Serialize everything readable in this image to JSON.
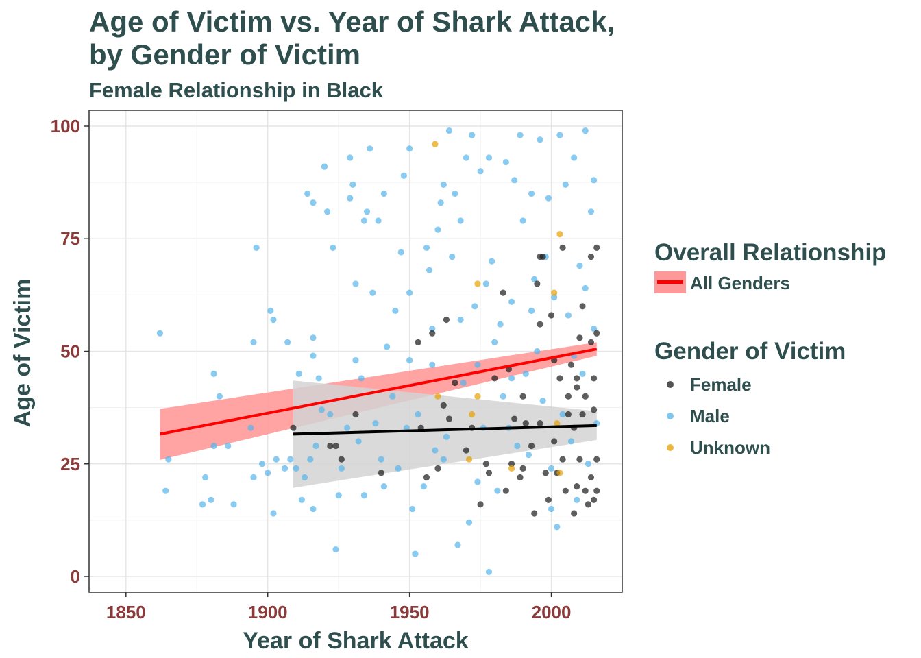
{
  "title_line1": "Age of Victim vs. Year of Shark Attack,",
  "title_line2": "by Gender of Victim",
  "subtitle": "Female Relationship in Black",
  "legend": {
    "overall_title": "Overall Relationship",
    "overall_item": "All Genders",
    "gender_title": "Gender of Victim",
    "genders": [
      {
        "label": "Female",
        "color": "#1a1a1a"
      },
      {
        "label": "Male",
        "color": "#56b4e9"
      },
      {
        "label": "Unknown",
        "color": "#e69f00"
      }
    ]
  },
  "colors": {
    "female": "#1a1a1a",
    "male": "#56b4e9",
    "unknown": "#e69f00",
    "overall_line": "#ff0000",
    "overall_band": "#ff9999",
    "female_band": "#d3d3d3",
    "title": "#2f4f4f",
    "tick": "#8b3a3a"
  },
  "chart_data": {
    "type": "scatter",
    "title": "Age of Victim vs. Year of Shark Attack,\nby Gender of Victim",
    "subtitle": "Female Relationship in Black",
    "xlabel": "Year of Shark Attack",
    "ylabel": "Age of Victim",
    "xlim": [
      1837,
      2025
    ],
    "ylim": [
      -3.5,
      103.5
    ],
    "x_ticks": [
      1850,
      1900,
      1950,
      2000
    ],
    "y_ticks": [
      0,
      25,
      50,
      75,
      100
    ],
    "grid": true,
    "legend_position": "right",
    "series": [
      {
        "name": "Female",
        "points": [
          [
            1909,
            33
          ],
          [
            1922,
            29
          ],
          [
            1924,
            29
          ],
          [
            1926,
            26
          ],
          [
            1931,
            36
          ],
          [
            1940,
            23
          ],
          [
            1953,
            52
          ],
          [
            1954,
            33
          ],
          [
            1956,
            22
          ],
          [
            1958,
            54
          ],
          [
            1960,
            24
          ],
          [
            1962,
            38
          ],
          [
            1963,
            57
          ],
          [
            1964,
            35
          ],
          [
            1966,
            43
          ],
          [
            1970,
            28
          ],
          [
            1972,
            33
          ],
          [
            1975,
            16
          ],
          [
            1977,
            25
          ],
          [
            1978,
            23
          ],
          [
            1980,
            44
          ],
          [
            1983,
            63
          ],
          [
            1984,
            19
          ],
          [
            1985,
            46
          ],
          [
            1986,
            25
          ],
          [
            1987,
            35
          ],
          [
            1989,
            22
          ],
          [
            1990,
            40
          ],
          [
            1990,
            24
          ],
          [
            1991,
            34
          ],
          [
            1993,
            29
          ],
          [
            1994,
            14
          ],
          [
            1995,
            65
          ],
          [
            1996,
            56
          ],
          [
            1996,
            34
          ],
          [
            1997,
            71
          ],
          [
            1998,
            23
          ],
          [
            1999,
            17
          ],
          [
            2000,
            58
          ],
          [
            2001,
            30
          ],
          [
            2002,
            23
          ],
          [
            2003,
            44
          ],
          [
            2004,
            26
          ],
          [
            2004,
            73
          ],
          [
            2005,
            19
          ],
          [
            2006,
            40
          ],
          [
            2006,
            36
          ],
          [
            2007,
            47
          ],
          [
            2008,
            14
          ],
          [
            2008,
            33
          ],
          [
            2009,
            44
          ],
          [
            2009,
            20
          ],
          [
            2010,
            26
          ],
          [
            2011,
            36
          ],
          [
            2011,
            60
          ],
          [
            2012,
            19
          ],
          [
            2012,
            40
          ],
          [
            2013,
            16
          ],
          [
            2014,
            52
          ],
          [
            2014,
            22
          ],
          [
            2014,
            71
          ],
          [
            2015,
            44
          ],
          [
            2015,
            37
          ],
          [
            2015,
            17
          ],
          [
            2016,
            73
          ],
          [
            2016,
            19
          ],
          [
            2016,
            26
          ],
          [
            2016,
            54
          ],
          [
            1996,
            71
          ],
          [
            2001,
            48
          ],
          [
            2009,
            42
          ],
          [
            2010,
            53
          ]
        ]
      },
      {
        "name": "Male",
        "points": [
          [
            1862,
            54
          ],
          [
            1864,
            19
          ],
          [
            1865,
            26
          ],
          [
            1877,
            16
          ],
          [
            1878,
            22
          ],
          [
            1880,
            17
          ],
          [
            1881,
            45
          ],
          [
            1881,
            29
          ],
          [
            1883,
            40
          ],
          [
            1886,
            29
          ],
          [
            1888,
            16
          ],
          [
            1894,
            33
          ],
          [
            1895,
            22
          ],
          [
            1895,
            52
          ],
          [
            1896,
            73
          ],
          [
            1898,
            25
          ],
          [
            1900,
            23
          ],
          [
            1901,
            59
          ],
          [
            1902,
            57
          ],
          [
            1902,
            14
          ],
          [
            1903,
            26
          ],
          [
            1906,
            24
          ],
          [
            1907,
            52
          ],
          [
            1908,
            26
          ],
          [
            1910,
            24
          ],
          [
            1911,
            45
          ],
          [
            1912,
            17
          ],
          [
            1913,
            22
          ],
          [
            1914,
            85
          ],
          [
            1915,
            26
          ],
          [
            1916,
            83
          ],
          [
            1916,
            53
          ],
          [
            1916,
            49
          ],
          [
            1916,
            15
          ],
          [
            1917,
            29
          ],
          [
            1918,
            44
          ],
          [
            1919,
            37
          ],
          [
            1920,
            91
          ],
          [
            1921,
            81
          ],
          [
            1922,
            36
          ],
          [
            1923,
            73
          ],
          [
            1924,
            6
          ],
          [
            1925,
            18
          ],
          [
            1926,
            24
          ],
          [
            1928,
            33
          ],
          [
            1929,
            84
          ],
          [
            1929,
            93
          ],
          [
            1930,
            87
          ],
          [
            1931,
            65
          ],
          [
            1931,
            48
          ],
          [
            1932,
            30
          ],
          [
            1933,
            44
          ],
          [
            1934,
            18
          ],
          [
            1934,
            79
          ],
          [
            1935,
            81
          ],
          [
            1936,
            95
          ],
          [
            1937,
            63
          ],
          [
            1938,
            34
          ],
          [
            1939,
            79
          ],
          [
            1940,
            26
          ],
          [
            1941,
            85
          ],
          [
            1941,
            20
          ],
          [
            1942,
            51
          ],
          [
            1944,
            40
          ],
          [
            1945,
            59
          ],
          [
            1946,
            24
          ],
          [
            1947,
            72
          ],
          [
            1948,
            89
          ],
          [
            1949,
            33
          ],
          [
            1950,
            95
          ],
          [
            1950,
            63
          ],
          [
            1950,
            48
          ],
          [
            1951,
            15
          ],
          [
            1952,
            5
          ],
          [
            1953,
            36
          ],
          [
            1955,
            20
          ],
          [
            1956,
            73
          ],
          [
            1957,
            68
          ],
          [
            1958,
            55
          ],
          [
            1959,
            28
          ],
          [
            1960,
            77
          ],
          [
            1961,
            83
          ],
          [
            1962,
            87
          ],
          [
            1963,
            31
          ],
          [
            1964,
            99
          ],
          [
            1965,
            71
          ],
          [
            1966,
            85
          ],
          [
            1967,
            7
          ],
          [
            1968,
            79
          ],
          [
            1969,
            43
          ],
          [
            1970,
            93
          ],
          [
            1971,
            12
          ],
          [
            1972,
            98
          ],
          [
            1973,
            60
          ],
          [
            1974,
            47
          ],
          [
            1975,
            90
          ],
          [
            1976,
            33
          ],
          [
            1977,
            65
          ],
          [
            1978,
            1
          ],
          [
            1978,
            93
          ],
          [
            1979,
            70
          ],
          [
            1980,
            52
          ],
          [
            1981,
            19
          ],
          [
            1982,
            56
          ],
          [
            1983,
            40
          ],
          [
            1984,
            92
          ],
          [
            1985,
            33
          ],
          [
            1986,
            61
          ],
          [
            1987,
            88
          ],
          [
            1988,
            29
          ],
          [
            1989,
            98
          ],
          [
            1990,
            79
          ],
          [
            1991,
            45
          ],
          [
            1992,
            27
          ],
          [
            1993,
            85
          ],
          [
            1994,
            66
          ],
          [
            1995,
            50
          ],
          [
            1996,
            97
          ],
          [
            1997,
            39
          ],
          [
            1998,
            71
          ],
          [
            1999,
            84
          ],
          [
            2000,
            24
          ],
          [
            2001,
            62
          ],
          [
            2002,
            11
          ],
          [
            2003,
            98
          ],
          [
            2004,
            36
          ],
          [
            2005,
            87
          ],
          [
            2006,
            58
          ],
          [
            2007,
            30
          ],
          [
            2008,
            93
          ],
          [
            2009,
            17
          ],
          [
            2010,
            69
          ],
          [
            2011,
            45
          ],
          [
            2012,
            99
          ],
          [
            2013,
            25
          ],
          [
            2014,
            81
          ],
          [
            2015,
            55
          ],
          [
            2016,
            34
          ],
          [
            1968,
            57
          ],
          [
            1962,
            26
          ],
          [
            1958,
            47
          ],
          [
            1974,
            21
          ],
          [
            1986,
            44
          ],
          [
            1993,
            59
          ],
          [
            2000,
            15
          ],
          [
            2008,
            49
          ],
          [
            2012,
            64
          ],
          [
            2015,
            88
          ]
        ]
      },
      {
        "name": "Unknown",
        "points": [
          [
            1959,
            96
          ],
          [
            1960,
            40
          ],
          [
            1971,
            26
          ],
          [
            1972,
            36
          ],
          [
            1974,
            65
          ],
          [
            1974,
            40
          ],
          [
            1986,
            24
          ],
          [
            2001,
            63
          ],
          [
            2002,
            34
          ],
          [
            2003,
            76
          ],
          [
            2003,
            23
          ]
        ]
      }
    ],
    "fits": [
      {
        "name": "All Genders",
        "x": [
          1862,
          2016
        ],
        "y": [
          31.6,
          50.5
        ],
        "band_lower": [
          25.9,
          49.0
        ],
        "band_upper": [
          37.2,
          52.0
        ]
      },
      {
        "name": "Female",
        "x": [
          1909,
          2016
        ],
        "y": [
          31.6,
          33.5
        ],
        "band_lower": [
          19.7,
          30.3
        ],
        "band_upper": [
          43.5,
          36.7
        ]
      }
    ]
  }
}
